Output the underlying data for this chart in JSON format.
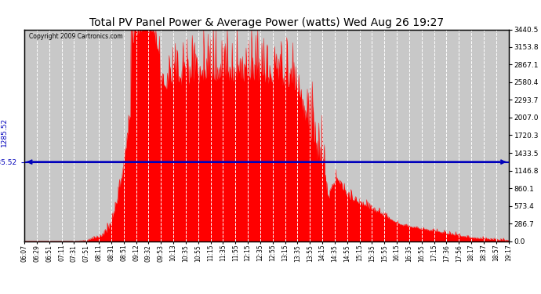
{
  "title": "Total PV Panel Power & Average Power (watts) Wed Aug 26 19:27",
  "copyright": "Copyright 2009 Cartronics.com",
  "avg_power": 1285.52,
  "y_max": 3440.5,
  "y_min": 0.0,
  "y_ticks": [
    0.0,
    286.7,
    573.4,
    860.1,
    1146.8,
    1433.5,
    1720.3,
    2007.0,
    2293.7,
    2580.4,
    2867.1,
    3153.8,
    3440.5
  ],
  "fill_color": "#FF0000",
  "line_color": "#0000BB",
  "background_color": "#C8C8C8",
  "plot_bg_color": "#C8C8C8",
  "grid_color": "#FFFFFF",
  "x_labels": [
    "06:07",
    "06:29",
    "06:51",
    "07:11",
    "07:31",
    "07:51",
    "08:11",
    "08:31",
    "08:51",
    "09:12",
    "09:32",
    "09:53",
    "10:13",
    "10:35",
    "10:55",
    "11:15",
    "11:35",
    "11:55",
    "12:15",
    "12:35",
    "12:55",
    "13:15",
    "13:35",
    "13:55",
    "14:15",
    "14:35",
    "14:55",
    "15:15",
    "15:35",
    "15:55",
    "16:15",
    "16:35",
    "16:55",
    "17:15",
    "17:36",
    "17:56",
    "18:17",
    "18:37",
    "18:57",
    "19:17"
  ]
}
